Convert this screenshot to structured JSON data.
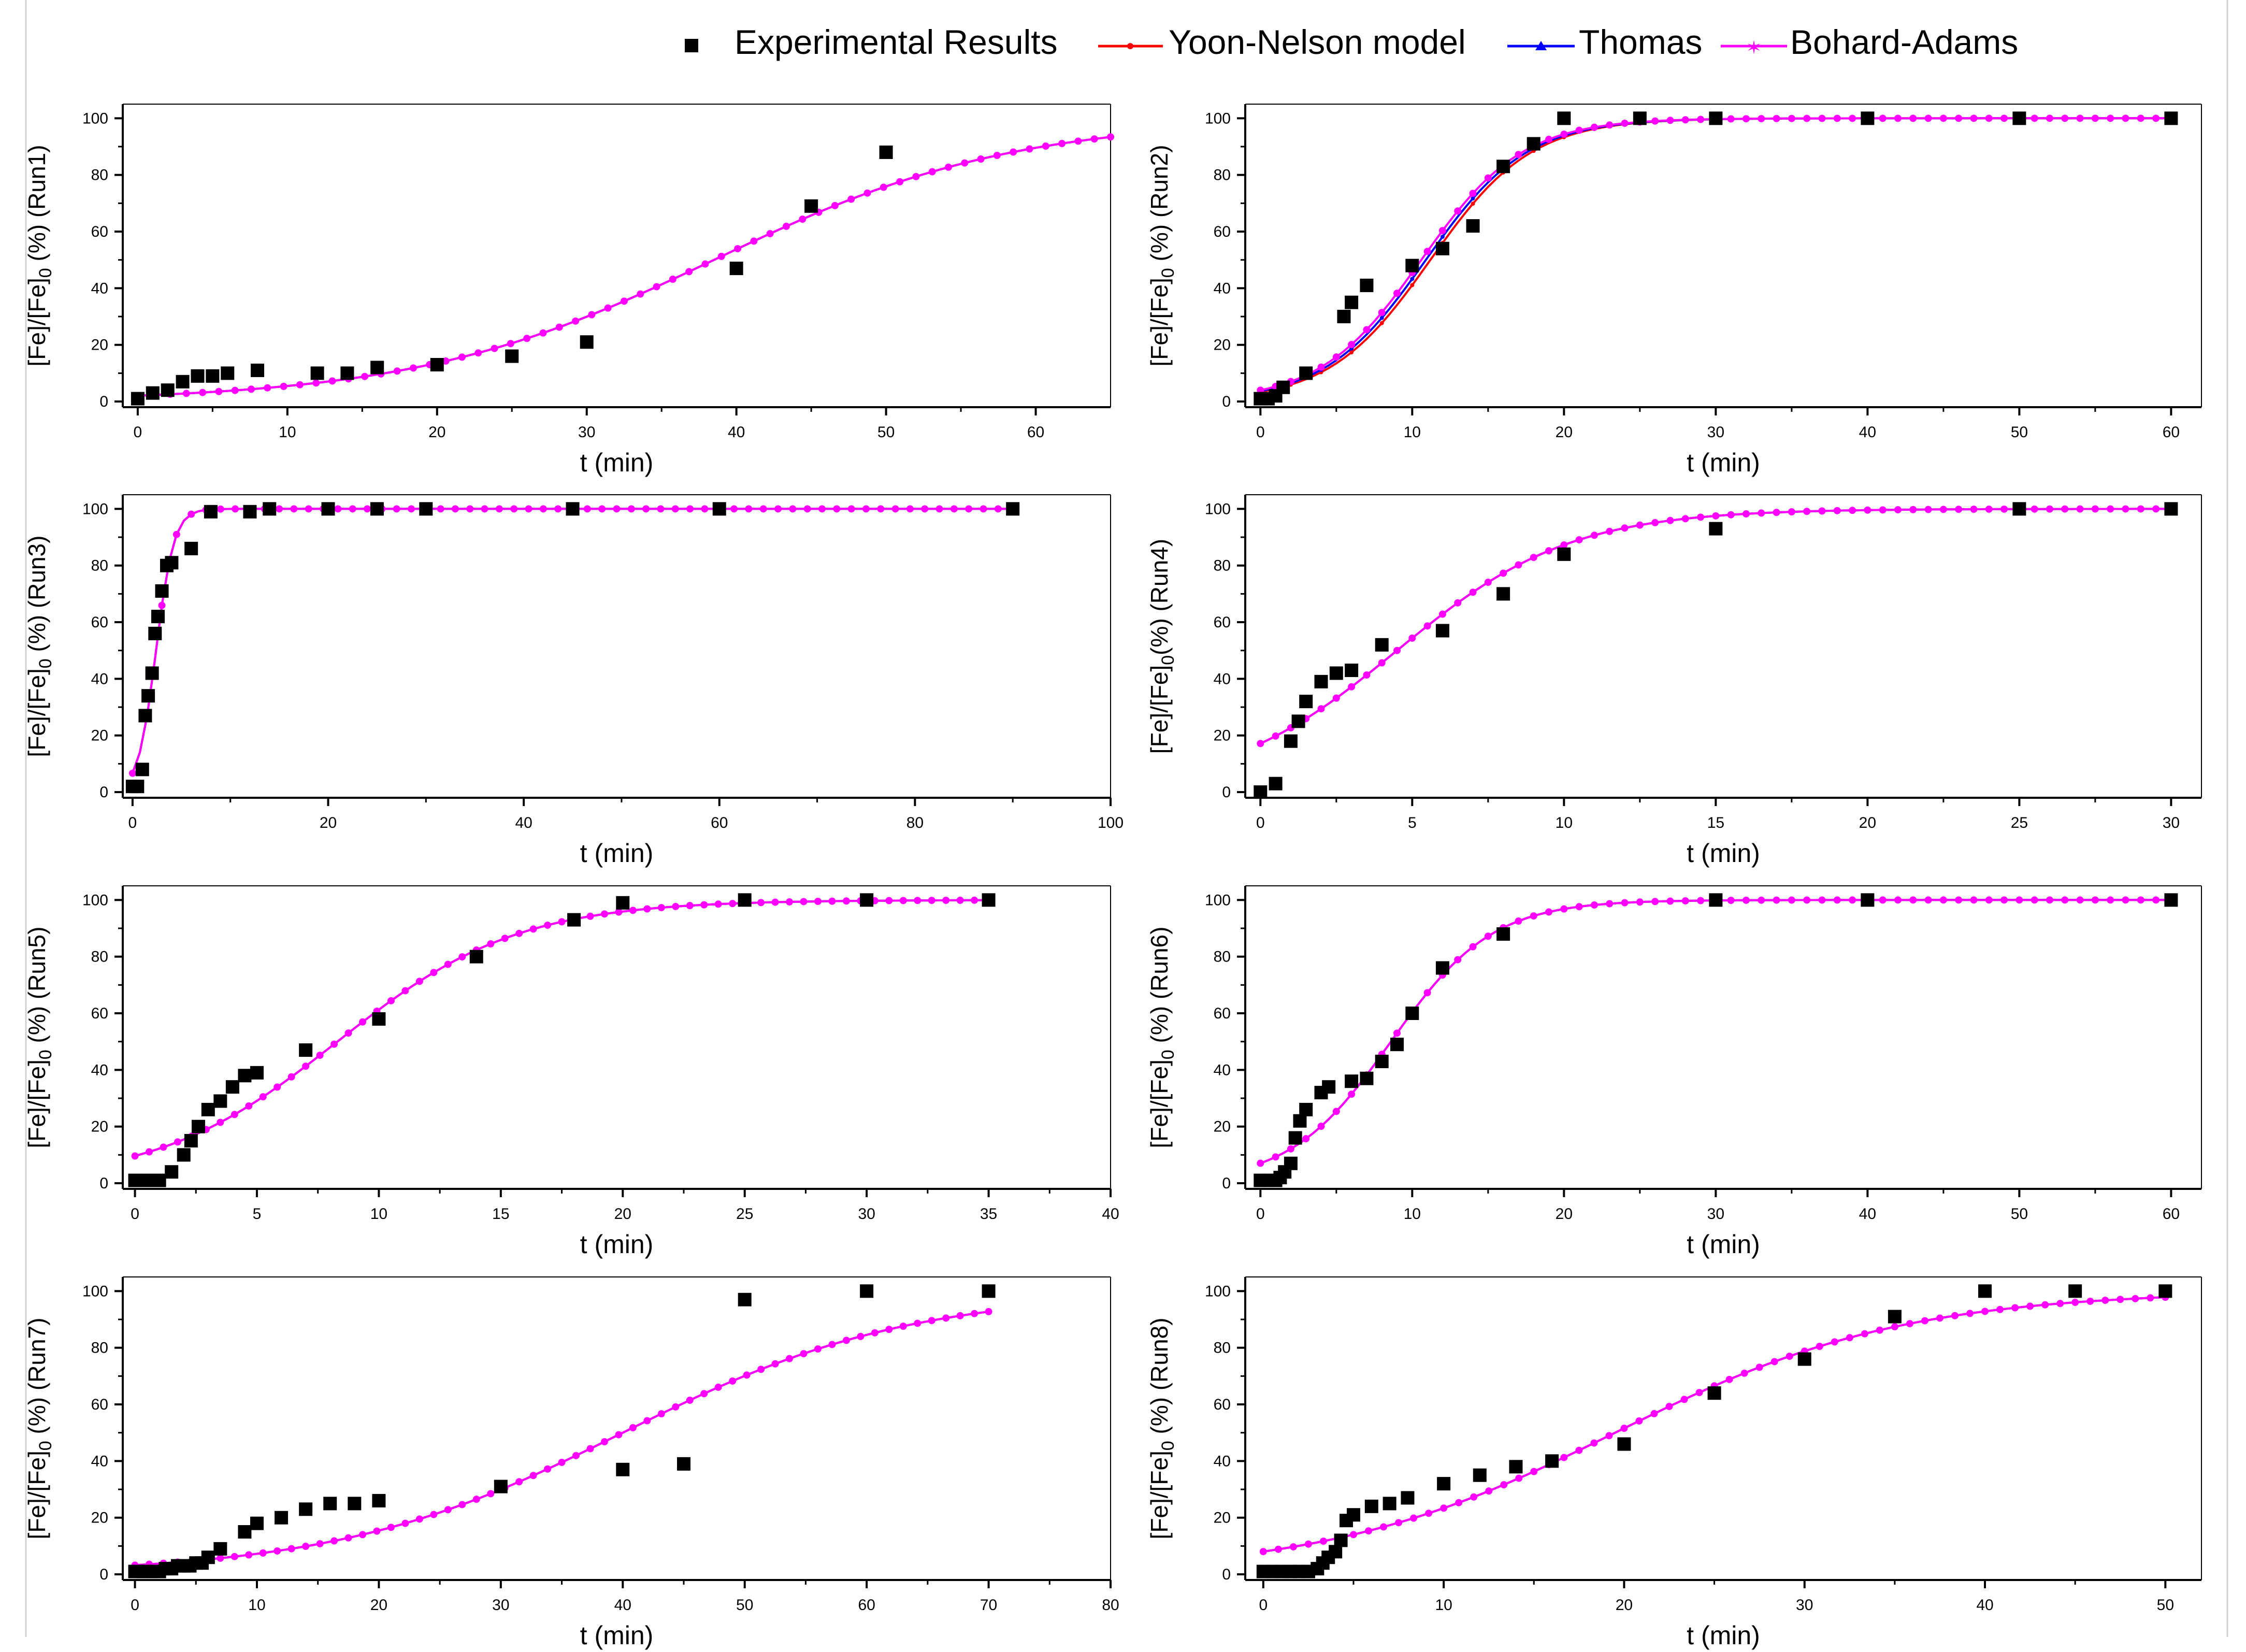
{
  "legend": {
    "entries": [
      {
        "label": "Experimental Results",
        "marker": "square",
        "color": "#000000"
      },
      {
        "label": "Yoon-Nelson model",
        "marker": "circle-line",
        "color": "#ff0000"
      },
      {
        "label": "Thomas",
        "marker": "triangle-line",
        "color": "#0000ff"
      },
      {
        "label": "Bohard-Adams",
        "marker": "star-line",
        "color": "#ff00ff"
      }
    ]
  },
  "colors": {
    "experimental": "#000000",
    "yoon_nelson": "#ff0000",
    "thomas": "#0000ff",
    "bohart_adams": "#ff00ff",
    "axis": "#000000"
  },
  "chart_data": [
    {
      "type": "scatter",
      "title": "",
      "xlabel": "t (min)",
      "ylabel_prefix": "[Fe]/[Fe]",
      "ylabel_sub": "0",
      "ylabel_suffix": " (%) (Run1)",
      "xlim": [
        -1,
        65
      ],
      "ylim": [
        -2,
        105
      ],
      "xticks": [
        0,
        10,
        20,
        30,
        40,
        50,
        60
      ],
      "yticks": [
        0,
        20,
        40,
        60,
        80,
        100
      ],
      "experimental": {
        "x": [
          0,
          1,
          2,
          3,
          4,
          5,
          6,
          8,
          12,
          14,
          16,
          20,
          25,
          30,
          40,
          45,
          50
        ],
        "y": [
          1,
          3,
          4,
          7,
          9,
          9,
          10,
          11,
          10,
          10,
          12,
          13,
          16,
          21,
          47,
          69,
          88
        ]
      },
      "models": [
        {
          "name": "Yoon-Nelson model",
          "t_half": 38.5,
          "k": 0.1,
          "y0": 0,
          "xmax": 65
        },
        {
          "name": "Thomas",
          "t_half": 38.5,
          "k": 0.1,
          "y0": 0,
          "xmax": 65
        },
        {
          "name": "Bohard-Adams",
          "t_half": 38.5,
          "k": 0.1,
          "y0": 0,
          "xmax": 65
        }
      ]
    },
    {
      "type": "scatter",
      "title": "",
      "xlabel": "t (min)",
      "ylabel_prefix": "[Fe]/[Fe]",
      "ylabel_sub": "0",
      "ylabel_suffix": " (%) (Run2)",
      "xlim": [
        -1,
        62
      ],
      "ylim": [
        -2,
        105
      ],
      "xticks": [
        0,
        10,
        20,
        30,
        40,
        50,
        60
      ],
      "yticks": [
        0,
        20,
        40,
        60,
        80,
        100
      ],
      "experimental": {
        "x": [
          0,
          0.5,
          1,
          1.5,
          3,
          5.5,
          6,
          7,
          10,
          12,
          14,
          16,
          18,
          20,
          25,
          30,
          40,
          50,
          60
        ],
        "y": [
          1,
          1,
          2,
          5,
          10,
          30,
          35,
          41,
          48,
          54,
          62,
          83,
          91,
          100,
          100,
          100,
          100,
          100,
          100
        ]
      },
      "models": [
        {
          "name": "Yoon-Nelson model",
          "t_half": 11.2,
          "k": 0.3,
          "y0": 0,
          "xmax": 60
        },
        {
          "name": "Thomas",
          "t_half": 10.9,
          "k": 0.3,
          "y0": 0,
          "xmax": 60
        },
        {
          "name": "Bohard-Adams",
          "t_half": 10.6,
          "k": 0.3,
          "y0": 0,
          "xmax": 60
        }
      ]
    },
    {
      "type": "scatter",
      "title": "",
      "xlabel": "t (min)",
      "ylabel_prefix": "[Fe]/[Fe]",
      "ylabel_sub": "0",
      "ylabel_suffix": " (%) (Run3)",
      "xlim": [
        -1,
        100
      ],
      "ylim": [
        -2,
        105
      ],
      "xticks": [
        0,
        20,
        40,
        60,
        80,
        100
      ],
      "yticks": [
        0,
        20,
        40,
        60,
        80,
        100
      ],
      "experimental": {
        "x": [
          0,
          0.5,
          1,
          1.3,
          1.6,
          2,
          2.3,
          2.6,
          3,
          3.5,
          4,
          6,
          8,
          12,
          14,
          20,
          25,
          30,
          45,
          60,
          90
        ],
        "y": [
          2,
          2,
          8,
          27,
          34,
          42,
          56,
          62,
          71,
          80,
          81,
          86,
          99,
          99,
          100,
          100,
          100,
          100,
          100,
          100,
          100
        ]
      },
      "models": [
        {
          "name": "Yoon-Nelson model",
          "t_half": 2.4,
          "k": 1.1,
          "y0": 0,
          "xmax": 90
        },
        {
          "name": "Thomas",
          "t_half": 2.4,
          "k": 1.1,
          "y0": 0,
          "xmax": 90
        },
        {
          "name": "Bohard-Adams",
          "t_half": 2.4,
          "k": 1.1,
          "y0": 0,
          "xmax": 90
        }
      ]
    },
    {
      "type": "scatter",
      "title": "",
      "xlabel": "t (min)",
      "ylabel_prefix": "[Fe]/[Fe]",
      "ylabel_sub": "0",
      "ylabel_suffix": "(%) (Run4)",
      "xlim": [
        -0.5,
        31
      ],
      "ylim": [
        -2,
        105
      ],
      "xticks": [
        0,
        5,
        10,
        15,
        20,
        25,
        30
      ],
      "yticks": [
        0,
        20,
        40,
        60,
        80,
        100
      ],
      "experimental": {
        "x": [
          0,
          0.5,
          1,
          1.25,
          1.5,
          2,
          2.5,
          3,
          4,
          6,
          8,
          10,
          15,
          25,
          30
        ],
        "y": [
          0,
          3,
          18,
          25,
          32,
          39,
          42,
          43,
          52,
          57,
          70,
          84,
          93,
          100,
          100
        ]
      },
      "models": [
        {
          "name": "Yoon-Nelson model",
          "t_half": 4.5,
          "k": 0.35,
          "y0": 0,
          "xmax": 30
        },
        {
          "name": "Thomas",
          "t_half": 4.5,
          "k": 0.35,
          "y0": 0,
          "xmax": 30
        },
        {
          "name": "Bohard-Adams",
          "t_half": 4.5,
          "k": 0.35,
          "y0": 0,
          "xmax": 30
        }
      ]
    },
    {
      "type": "scatter",
      "title": "",
      "xlabel": "t (min)",
      "ylabel_prefix": "[Fe]/[Fe]",
      "ylabel_sub": "0",
      "ylabel_suffix": " (%) (Run5)",
      "xlim": [
        -0.5,
        40
      ],
      "ylim": [
        -2,
        105
      ],
      "xticks": [
        0,
        5,
        10,
        15,
        20,
        25,
        30,
        35,
        40
      ],
      "yticks": [
        0,
        20,
        40,
        60,
        80,
        100
      ],
      "experimental": {
        "x": [
          0,
          0.5,
          1,
          1.5,
          2,
          2.3,
          2.6,
          3,
          3.5,
          4,
          4.5,
          5,
          7,
          10,
          14,
          18,
          20,
          25,
          30,
          35
        ],
        "y": [
          1,
          1,
          1,
          4,
          10,
          15,
          20,
          26,
          29,
          34,
          38,
          39,
          47,
          58,
          80,
          93,
          99,
          100,
          100,
          100
        ]
      },
      "models": [
        {
          "name": "Yoon-Nelson model",
          "t_half": 8.3,
          "k": 0.27,
          "y0": 0,
          "xmax": 35
        },
        {
          "name": "Thomas",
          "t_half": 8.3,
          "k": 0.27,
          "y0": 0,
          "xmax": 35
        },
        {
          "name": "Bohard-Adams",
          "t_half": 8.3,
          "k": 0.27,
          "y0": 0,
          "xmax": 35
        }
      ]
    },
    {
      "type": "scatter",
      "title": "",
      "xlabel": "t (min)",
      "ylabel_prefix": "[Fe]/[Fe]",
      "ylabel_sub": "0",
      "ylabel_suffix": " (%) (Run6)",
      "xlim": [
        -1,
        62
      ],
      "ylim": [
        -2,
        105
      ],
      "xticks": [
        0,
        10,
        20,
        30,
        40,
        50,
        60
      ],
      "yticks": [
        0,
        20,
        40,
        60,
        80,
        100
      ],
      "experimental": {
        "x": [
          0,
          0.5,
          1,
          1.3,
          1.6,
          2,
          2.3,
          2.6,
          3,
          4,
          4.5,
          6,
          7,
          8,
          9,
          10,
          12,
          16,
          30,
          40,
          60
        ],
        "y": [
          1,
          1,
          1,
          2,
          4,
          7,
          16,
          22,
          26,
          32,
          34,
          36,
          37,
          43,
          49,
          60,
          76,
          88,
          100,
          100,
          100
        ]
      },
      "models": [
        {
          "name": "Yoon-Nelson model",
          "t_half": 8.6,
          "k": 0.3,
          "y0": 0,
          "xmax": 60
        },
        {
          "name": "Thomas",
          "t_half": 8.6,
          "k": 0.3,
          "y0": 0,
          "xmax": 60
        },
        {
          "name": "Bohard-Adams",
          "t_half": 8.6,
          "k": 0.3,
          "y0": 0,
          "xmax": 60
        }
      ]
    },
    {
      "type": "scatter",
      "title": "",
      "xlabel": "t (min)",
      "ylabel_prefix": "[Fe]/[Fe]",
      "ylabel_sub": "0",
      "ylabel_suffix": " (%) (Run7)",
      "xlim": [
        -1,
        80
      ],
      "ylim": [
        -2,
        105
      ],
      "xticks": [
        0,
        10,
        20,
        30,
        40,
        50,
        60,
        70,
        80
      ],
      "yticks": [
        0,
        20,
        40,
        60,
        80,
        100
      ],
      "experimental": {
        "x": [
          0,
          0.5,
          1,
          1.5,
          2,
          2.5,
          3,
          3.5,
          4,
          4.5,
          5,
          5.5,
          6,
          7,
          9,
          10,
          12,
          14,
          16,
          18,
          20,
          30,
          40,
          45,
          50,
          60,
          70
        ],
        "y": [
          1,
          1,
          1,
          1,
          1,
          2,
          2,
          3,
          3,
          3,
          4,
          4,
          6,
          9,
          15,
          18,
          20,
          23,
          25,
          25,
          26,
          31,
          37,
          39,
          97,
          100,
          100
        ]
      },
      "models": [
        {
          "name": "Yoon-Nelson model",
          "t_half": 40,
          "k": 0.085,
          "y0": 0,
          "xmax": 70
        },
        {
          "name": "Thomas",
          "t_half": 40,
          "k": 0.085,
          "y0": 0,
          "xmax": 70
        },
        {
          "name": "Bohard-Adams",
          "t_half": 40,
          "k": 0.085,
          "y0": 0,
          "xmax": 70
        }
      ]
    },
    {
      "type": "scatter",
      "title": "",
      "xlabel": "t (min)",
      "ylabel_prefix": "[Fe]/[Fe]",
      "ylabel_sub": "0",
      "ylabel_suffix": " (%) (Run8)",
      "xlim": [
        -1,
        52
      ],
      "ylim": [
        -2,
        105
      ],
      "xticks": [
        0,
        10,
        20,
        30,
        40,
        50
      ],
      "yticks": [
        0,
        20,
        40,
        60,
        80,
        100
      ],
      "experimental": {
        "x": [
          0,
          0.5,
          1,
          1.5,
          2,
          2.5,
          3,
          3.3,
          3.6,
          4,
          4.3,
          4.6,
          5,
          6,
          7,
          8,
          10,
          12,
          14,
          16,
          20,
          25,
          30,
          35,
          40,
          45,
          50
        ],
        "y": [
          1,
          1,
          1,
          1,
          1,
          1,
          2,
          4,
          6,
          8,
          12,
          19,
          21,
          24,
          25,
          27,
          32,
          35,
          38,
          40,
          46,
          64,
          76,
          91,
          100,
          100,
          100
        ]
      },
      "models": [
        {
          "name": "Yoon-Nelson model",
          "t_half": 19.5,
          "k": 0.125,
          "y0": 0,
          "xmax": 50
        },
        {
          "name": "Thomas",
          "t_half": 19.5,
          "k": 0.125,
          "y0": 0,
          "xmax": 50
        },
        {
          "name": "Bohard-Adams",
          "t_half": 19.5,
          "k": 0.125,
          "y0": 0,
          "xmax": 50
        }
      ]
    }
  ]
}
